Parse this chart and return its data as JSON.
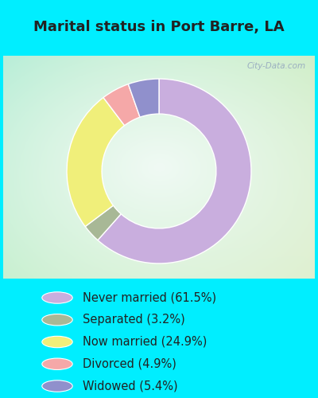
{
  "title": "Marital status in Port Barre, LA",
  "slices": [
    {
      "label": "Never married (61.5%)",
      "value": 61.5,
      "color": "#c9aede"
    },
    {
      "label": "Separated (3.2%)",
      "value": 3.2,
      "color": "#a8b896"
    },
    {
      "label": "Now married (24.9%)",
      "value": 24.9,
      "color": "#f0ef7a"
    },
    {
      "label": "Divorced (4.9%)",
      "value": 4.9,
      "color": "#f5a8a8"
    },
    {
      "label": "Widowed (5.4%)",
      "value": 5.4,
      "color": "#9090cc"
    }
  ],
  "title_fontsize": 13,
  "title_color": "#222222",
  "title_bg_color": "#00eeff",
  "chart_bg_tl": "#b8eed8",
  "chart_bg_tr": "#d0eec8",
  "chart_bg_bl": "#c8f0d0",
  "chart_bg_br": "#e0f0d0",
  "chart_center_color": "#f0faf4",
  "legend_bg_color": "#00eeff",
  "watermark": "City-Data.com",
  "donut_width": 0.38,
  "start_angle": 90,
  "legend_fontsize": 10.5,
  "legend_text_color": "#222222"
}
